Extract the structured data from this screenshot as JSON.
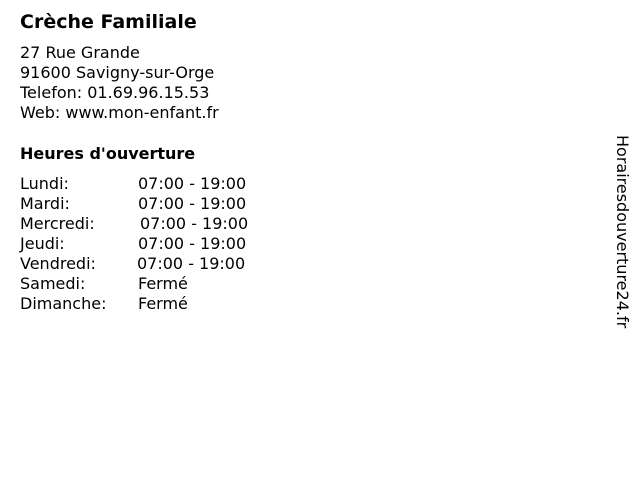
{
  "title": "Crèche Familiale",
  "address": {
    "street": "27 Rue Grande",
    "city": "91600 Savigny-sur-Orge",
    "phone": "Telefon: 01.69.96.15.53",
    "web": "Web: www.mon-enfant.fr"
  },
  "hours_heading": "Heures d'ouverture",
  "hours": [
    {
      "day": "Lundi:",
      "time": "07:00 - 19:00"
    },
    {
      "day": "Mardi:",
      "time": "07:00 - 19:00"
    },
    {
      "day": "Mercredi:",
      "time": "07:00 - 19:00"
    },
    {
      "day": "Jeudi:",
      "time": "07:00 - 19:00"
    },
    {
      "day": "Vendredi:",
      "time": "07:00 - 19:00"
    },
    {
      "day": "Samedi:",
      "time": "Fermé"
    },
    {
      "day": "Dimanche:",
      "time": "Fermé"
    }
  ],
  "watermark": "Horairesdouverture24.fr"
}
